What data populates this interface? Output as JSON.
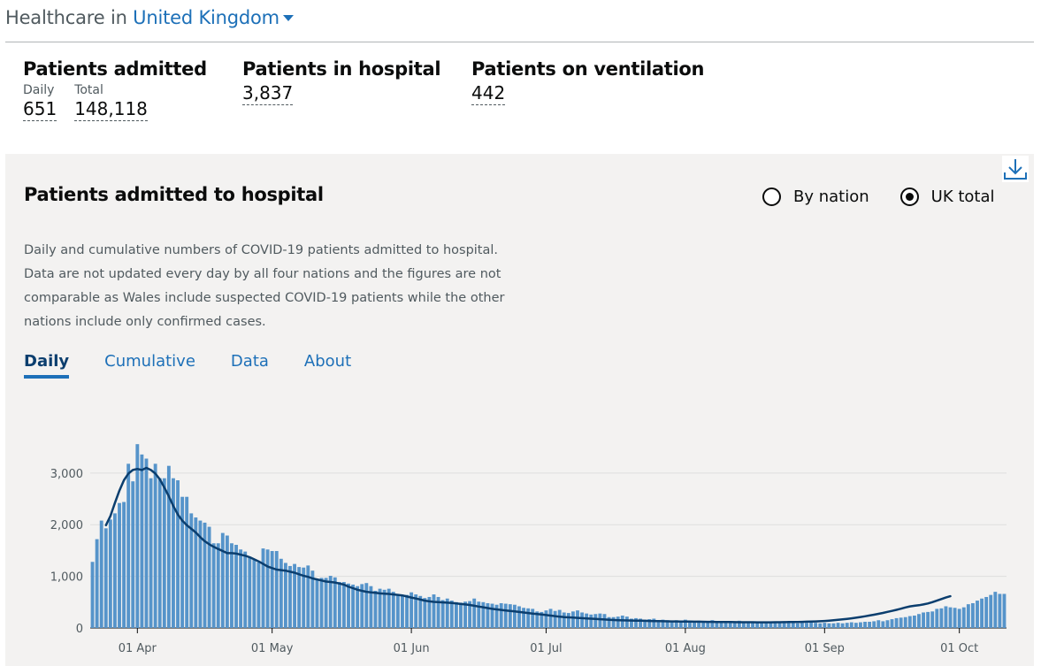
{
  "header": {
    "prefix": "Healthcare in",
    "place": "United Kingdom"
  },
  "summary": {
    "admitted": {
      "title": "Patients admitted",
      "daily_label": "Daily",
      "daily_value": "651",
      "total_label": "Total",
      "total_value": "148,118"
    },
    "in_hospital": {
      "title": "Patients in hospital",
      "value": "3,837"
    },
    "ventilation": {
      "title": "Patients on ventilation",
      "value": "442"
    }
  },
  "card": {
    "title": "Patients admitted to hospital",
    "radio_options": [
      "By nation",
      "UK total"
    ],
    "selected": "UK total",
    "description": "Daily and cumulative numbers of COVID-19 patients admitted to hospital. Data are not updated every day by all four nations and the figures are not comparable as Wales include suspected COVID-19 patients while the other nations include only confirmed cases.",
    "tabs": [
      "Daily",
      "Cumulative",
      "Data",
      "About"
    ],
    "active_tab": "Daily",
    "download_icon": "download-icon"
  },
  "colors": {
    "bar": "#5694ca",
    "line": "#0b3e6e",
    "link": "#1d70b8",
    "panel": "#f3f2f1",
    "grid": "#dedede"
  },
  "chart_data": {
    "type": "bar",
    "series": [
      {
        "kind": "bar",
        "values": [
          1280,
          1720,
          2080,
          1930,
          2100,
          2220,
          2420,
          2440,
          3180,
          2840,
          3560,
          3360,
          3280,
          2900,
          3180,
          2900,
          2900,
          3140,
          2900,
          2860,
          2540,
          2540,
          2220,
          2140,
          2080,
          2040,
          1960,
          1640,
          1640,
          1840,
          1790,
          1640,
          1610,
          1520,
          1480,
          1380,
          1320,
          1270,
          1540,
          1520,
          1490,
          1490,
          1340,
          1260,
          1200,
          1240,
          1180,
          1170,
          1210,
          1110,
          940,
          970,
          970,
          1010,
          980,
          890,
          890,
          860,
          840,
          810,
          850,
          870,
          810,
          720,
          760,
          740,
          760,
          700,
          650,
          630,
          640,
          690,
          650,
          620,
          580,
          600,
          650,
          600,
          540,
          570,
          530,
          500,
          490,
          510,
          520,
          570,
          510,
          500,
          480,
          470,
          450,
          480,
          470,
          460,
          450,
          420,
          390,
          380,
          370,
          320,
          310,
          340,
          370,
          330,
          350,
          300,
          290,
          320,
          340,
          300,
          280,
          260,
          270,
          280,
          270,
          210,
          210,
          220,
          240,
          220,
          180,
          190,
          180,
          160,
          170,
          180,
          150,
          160,
          150,
          140,
          150,
          140,
          160,
          130,
          130,
          140,
          120,
          130,
          150,
          130,
          120,
          110,
          120,
          120,
          140,
          120,
          110,
          120,
          100,
          110,
          120,
          110,
          100,
          100,
          110,
          110,
          100,
          90,
          100,
          100,
          110,
          100,
          90,
          100,
          90,
          90,
          100,
          90,
          100,
          110,
          100,
          110,
          120,
          120,
          130,
          150,
          130,
          150,
          170,
          190,
          200,
          210,
          230,
          240,
          270,
          300,
          310,
          320,
          370,
          380,
          420,
          400,
          390,
          370,
          400,
          460,
          480,
          530,
          570,
          600,
          640,
          700,
          660,
          660
        ]
      },
      {
        "kind": "line",
        "start_index": 3,
        "values": [
          1990,
          2170,
          2420,
          2660,
          2860,
          2990,
          3060,
          3080,
          3060,
          3100,
          3060,
          2990,
          2880,
          2720,
          2550,
          2360,
          2200,
          2080,
          1990,
          1920,
          1850,
          1760,
          1680,
          1620,
          1570,
          1530,
          1490,
          1450,
          1450,
          1440,
          1420,
          1400,
          1370,
          1330,
          1290,
          1240,
          1190,
          1160,
          1130,
          1120,
          1110,
          1090,
          1070,
          1040,
          1010,
          990,
          960,
          940,
          920,
          900,
          890,
          880,
          860,
          840,
          800,
          770,
          740,
          720,
          700,
          690,
          680,
          670,
          665,
          660,
          650,
          640,
          630,
          610,
          590,
          570,
          550,
          530,
          515,
          505,
          500,
          495,
          490,
          485,
          475,
          465,
          455,
          445,
          430,
          415,
          400,
          385,
          370,
          360,
          350,
          340,
          330,
          320,
          310,
          300,
          290,
          280,
          270,
          260,
          250,
          240,
          230,
          220,
          210,
          205,
          200,
          195,
          190,
          185,
          180,
          175,
          170,
          165,
          160,
          155,
          150,
          148,
          146,
          144,
          142,
          140,
          138,
          136,
          134,
          132,
          130,
          128,
          127,
          126,
          125,
          124,
          123,
          122,
          121,
          120,
          119,
          118,
          117,
          116,
          115,
          114,
          113,
          112,
          112,
          111,
          111,
          110,
          110,
          110,
          110,
          111,
          112,
          113,
          114,
          115,
          117,
          119,
          121,
          124,
          127,
          131,
          136,
          142,
          149,
          157,
          166,
          176,
          187,
          199,
          212,
          226,
          241,
          257,
          274,
          292,
          311,
          331,
          352,
          374,
          397,
          418,
          430,
          440,
          455,
          475,
          500,
          530,
          560,
          590,
          615
        ]
      }
    ],
    "x_ticks": [
      {
        "index": 10,
        "label": "01 Apr"
      },
      {
        "index": 40,
        "label": "01 May"
      },
      {
        "index": 71,
        "label": "01 Jun"
      },
      {
        "index": 101,
        "label": "01 Jul"
      },
      {
        "index": 132,
        "label": "01 Aug"
      },
      {
        "index": 163,
        "label": "01 Sep"
      },
      {
        "index": 193,
        "label": "01 Oct"
      }
    ],
    "y_ticks": [
      {
        "value": 0,
        "label": "0"
      },
      {
        "value": 1000,
        "label": "1,000"
      },
      {
        "value": 2000,
        "label": "2,000"
      },
      {
        "value": 3000,
        "label": "3,000"
      }
    ],
    "ylim": [
      0,
      3700
    ],
    "grid": true,
    "legend": false
  }
}
